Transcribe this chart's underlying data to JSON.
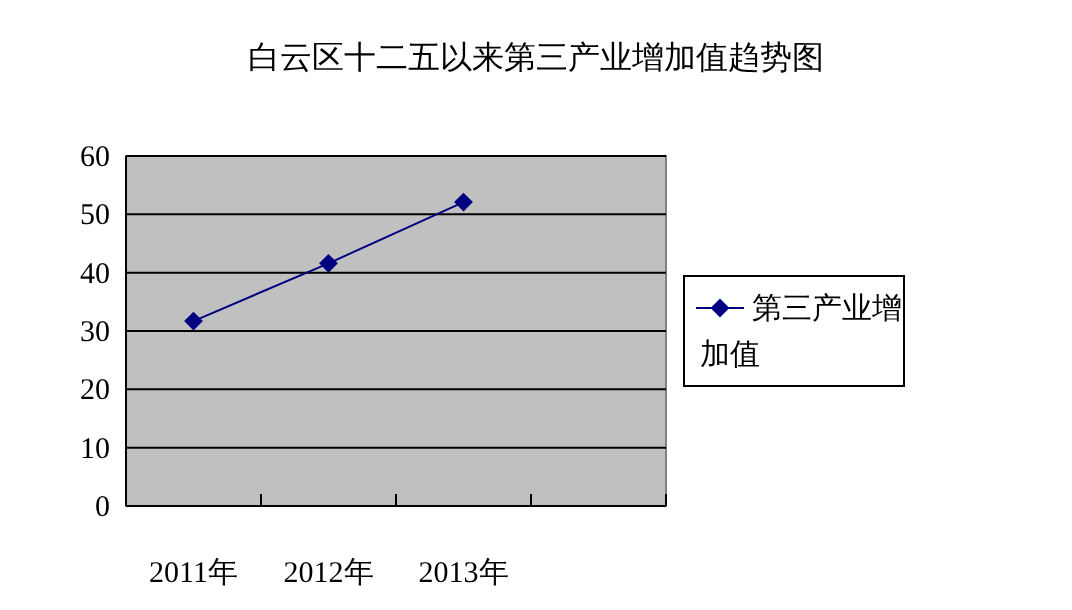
{
  "chart_data": {
    "type": "line",
    "title": "白云区十二五以来第三产业增加值趋势图",
    "categories": [
      "2011年",
      "2012年",
      "2013年",
      null
    ],
    "series": [
      {
        "name": "第三产业增加值",
        "color": "#000080",
        "values": [
          31.7,
          41.6,
          52.1,
          null
        ]
      }
    ],
    "ylim": [
      0,
      60
    ],
    "yticks": [
      0,
      10,
      20,
      30,
      40,
      50,
      60
    ],
    "grid": "y",
    "legend": "right",
    "marker": "diamond"
  }
}
